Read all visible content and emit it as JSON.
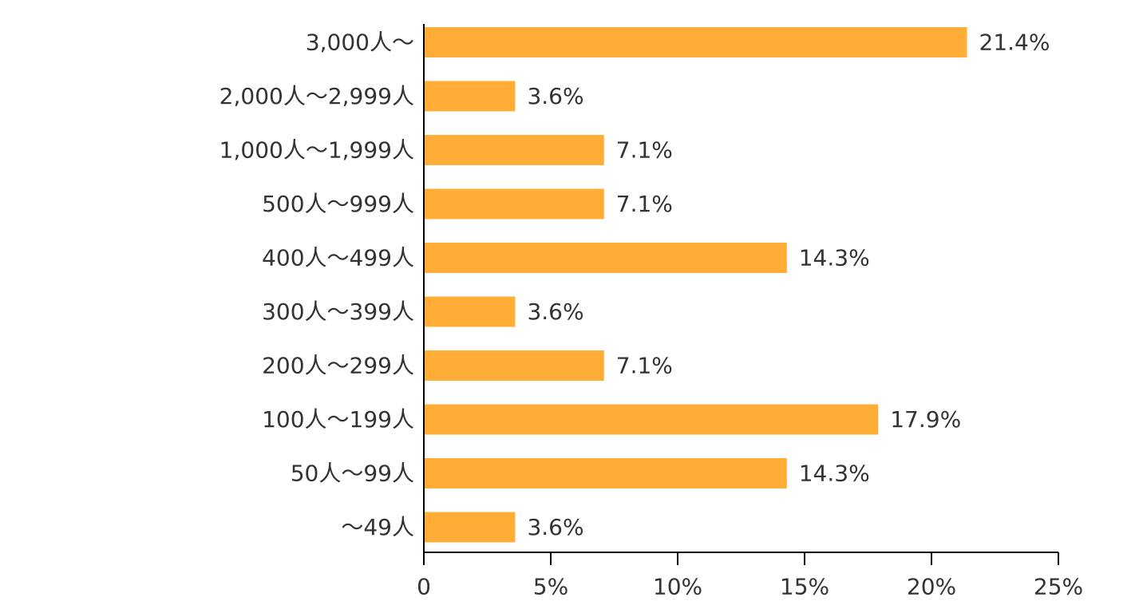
{
  "chart_data": {
    "type": "bar",
    "orientation": "horizontal",
    "categories": [
      "3,000人～",
      "2,000人～2,999人",
      "1,000人～1,999人",
      "500人～999人",
      "400人～499人",
      "300人～399人",
      "200人～299人",
      "100人～199人",
      "50人～99人",
      "～49人"
    ],
    "values": [
      21.4,
      3.6,
      7.1,
      7.1,
      14.3,
      3.6,
      7.1,
      17.9,
      14.3,
      3.6
    ],
    "value_labels": [
      "21.4%",
      "3.6%",
      "7.1%",
      "7.1%",
      "14.3%",
      "3.6%",
      "7.1%",
      "17.9%",
      "14.3%",
      "3.6%"
    ],
    "xlim": [
      0,
      25
    ],
    "x_ticks": [
      0,
      5,
      10,
      15,
      20,
      25
    ],
    "x_tick_labels": [
      "0",
      "5%",
      "10%",
      "15%",
      "20%",
      "25%"
    ],
    "grid": false,
    "legend": "none",
    "bar_color": "#FFAD37",
    "axis_color": "#000000",
    "text_color": "#333333"
  }
}
